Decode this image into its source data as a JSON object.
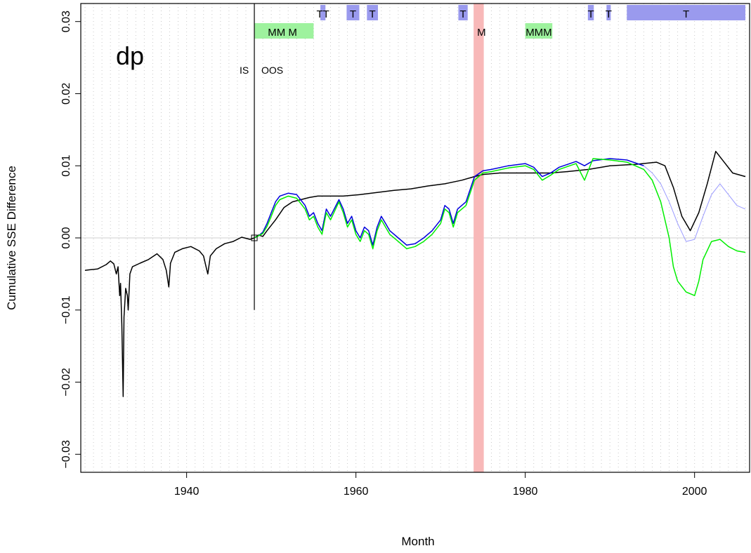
{
  "chart_data": {
    "type": "line",
    "title": "",
    "panel_label": "dp",
    "xlabel": "Month",
    "ylabel": "Cumulative SSE Difference",
    "xlim": [
      1927.5,
      2006.5
    ],
    "ylim": [
      -0.0325,
      0.0325
    ],
    "x_ticks": [
      1940,
      1960,
      1980,
      2000
    ],
    "x_tick_labels": [
      "1940",
      "1960",
      "1980",
      "2000"
    ],
    "y_ticks": [
      -0.03,
      -0.02,
      -0.01,
      0.0,
      0.01,
      0.02,
      0.03
    ],
    "y_tick_labels": [
      "−0.03",
      "−0.02",
      "−0.01",
      "0.00",
      "0.01",
      "0.02",
      "0.03"
    ],
    "zero_line": 0,
    "grid": "vertical dotted yearly lines",
    "oos_start": 1948,
    "is_label": "IS",
    "oos_label": "OOS",
    "oos_marker_ylim": [
      -0.01,
      0.0325
    ],
    "recession_band": {
      "x0": 1973.9,
      "x1": 1975.1,
      "color": "#f8b8b8",
      "label": "M"
    },
    "t_bands": [
      {
        "x0": 1955.8,
        "x1": 1956.4,
        "label": "TT"
      },
      {
        "x0": 1958.9,
        "x1": 1960.4,
        "label": "T"
      },
      {
        "x0": 1961.3,
        "x1": 1962.6,
        "label": "T"
      },
      {
        "x0": 1972.1,
        "x1": 1973.2,
        "label": "T"
      },
      {
        "x0": 1987.4,
        "x1": 1988.1,
        "label": "T"
      },
      {
        "x0": 1989.6,
        "x1": 1990.1,
        "label": "T"
      },
      {
        "x0": 1992.0,
        "x1": 2006.0,
        "label": "T"
      }
    ],
    "m_bands": [
      {
        "x0": 1948.0,
        "x1": 1955.0,
        "label": "MM   M"
      },
      {
        "x0": 1980.0,
        "x1": 1983.2,
        "label": "MMM"
      }
    ],
    "band_colors": {
      "t": "#9a9aee",
      "m": "#9ef29e"
    },
    "series": [
      {
        "color": "#000000",
        "points": [
          [
            1928.0,
            -0.0045
          ],
          [
            1929.5,
            -0.0043
          ],
          [
            1930.5,
            -0.0037
          ],
          [
            1931.0,
            -0.0032
          ],
          [
            1931.4,
            -0.0036
          ],
          [
            1931.7,
            -0.005
          ],
          [
            1931.9,
            -0.004
          ],
          [
            1932.1,
            -0.008
          ],
          [
            1932.2,
            -0.0063
          ],
          [
            1932.35,
            -0.012
          ],
          [
            1932.5,
            -0.022
          ],
          [
            1932.6,
            -0.011
          ],
          [
            1932.8,
            -0.007
          ],
          [
            1933.0,
            -0.008
          ],
          [
            1933.1,
            -0.01
          ],
          [
            1933.3,
            -0.005
          ],
          [
            1933.6,
            -0.004
          ],
          [
            1934.5,
            -0.0035
          ],
          [
            1935.5,
            -0.003
          ],
          [
            1936.5,
            -0.0022
          ],
          [
            1937.2,
            -0.003
          ],
          [
            1937.6,
            -0.0045
          ],
          [
            1937.9,
            -0.0068
          ],
          [
            1938.1,
            -0.0035
          ],
          [
            1938.6,
            -0.002
          ],
          [
            1939.5,
            -0.0015
          ],
          [
            1940.5,
            -0.0012
          ],
          [
            1941.5,
            -0.0018
          ],
          [
            1942.0,
            -0.0025
          ],
          [
            1942.3,
            -0.004
          ],
          [
            1942.5,
            -0.005
          ],
          [
            1942.8,
            -0.0025
          ],
          [
            1943.5,
            -0.0015
          ],
          [
            1944.5,
            -0.0008
          ],
          [
            1945.5,
            -0.0005
          ],
          [
            1946.5,
            0.0001
          ],
          [
            1947.5,
            -0.0002
          ],
          [
            1948.0,
            0.0
          ],
          [
            1948.5,
            0.0004
          ],
          [
            1949.0,
            0.0002
          ],
          [
            1949.5,
            0.001
          ],
          [
            1950.5,
            0.0025
          ],
          [
            1951.5,
            0.0042
          ],
          [
            1952.5,
            0.005
          ],
          [
            1953.5,
            0.0053
          ],
          [
            1954.5,
            0.0056
          ],
          [
            1955.5,
            0.0058
          ],
          [
            1956.5,
            0.0058
          ],
          [
            1958.5,
            0.0058
          ],
          [
            1960.5,
            0.006
          ],
          [
            1962.5,
            0.0063
          ],
          [
            1964.5,
            0.0066
          ],
          [
            1966.5,
            0.0068
          ],
          [
            1968.5,
            0.0072
          ],
          [
            1970.5,
            0.0075
          ],
          [
            1972.5,
            0.008
          ],
          [
            1974.0,
            0.0085
          ],
          [
            1975.0,
            0.0088
          ],
          [
            1977.0,
            0.009
          ],
          [
            1980.0,
            0.009
          ],
          [
            1983.0,
            0.009
          ],
          [
            1985.0,
            0.0092
          ],
          [
            1987.5,
            0.0095
          ],
          [
            1990.0,
            0.01
          ],
          [
            1993.0,
            0.0102
          ],
          [
            1995.5,
            0.0105
          ],
          [
            1996.5,
            0.01
          ],
          [
            1997.5,
            0.007
          ],
          [
            1998.5,
            0.003
          ],
          [
            1999.5,
            0.001
          ],
          [
            2000.5,
            0.0035
          ],
          [
            2001.5,
            0.0075
          ],
          [
            2002.5,
            0.012
          ],
          [
            2003.5,
            0.0105
          ],
          [
            2004.5,
            0.009
          ],
          [
            2006.0,
            0.0085
          ]
        ]
      },
      {
        "color": "#0000dd",
        "points": [
          [
            1948.0,
            0.0
          ],
          [
            1948.5,
            0.0003
          ],
          [
            1949.0,
            0.0008
          ],
          [
            1949.5,
            0.002
          ],
          [
            1950.0,
            0.0035
          ],
          [
            1950.5,
            0.005
          ],
          [
            1951.0,
            0.0058
          ],
          [
            1952.0,
            0.0062
          ],
          [
            1953.0,
            0.006
          ],
          [
            1954.0,
            0.0045
          ],
          [
            1954.5,
            0.003
          ],
          [
            1955.0,
            0.0035
          ],
          [
            1955.5,
            0.002
          ],
          [
            1956.0,
            0.001
          ],
          [
            1956.5,
            0.004
          ],
          [
            1957.0,
            0.003
          ],
          [
            1958.0,
            0.0053
          ],
          [
            1958.5,
            0.004
          ],
          [
            1959.0,
            0.002
          ],
          [
            1959.5,
            0.003
          ],
          [
            1960.0,
            0.001
          ],
          [
            1960.5,
            0.0
          ],
          [
            1961.0,
            0.0015
          ],
          [
            1961.5,
            0.001
          ],
          [
            1962.0,
            -0.001
          ],
          [
            1962.5,
            0.0015
          ],
          [
            1963.0,
            0.003
          ],
          [
            1963.5,
            0.002
          ],
          [
            1964.0,
            0.001
          ],
          [
            1965.0,
            0.0
          ],
          [
            1966.0,
            -0.001
          ],
          [
            1967.0,
            -0.0008
          ],
          [
            1968.0,
            0.0
          ],
          [
            1969.0,
            0.001
          ],
          [
            1970.0,
            0.0025
          ],
          [
            1970.5,
            0.0045
          ],
          [
            1971.0,
            0.004
          ],
          [
            1971.5,
            0.002
          ],
          [
            1972.0,
            0.004
          ],
          [
            1973.0,
            0.005
          ],
          [
            1974.0,
            0.0085
          ],
          [
            1975.0,
            0.0093
          ],
          [
            1976.0,
            0.0095
          ],
          [
            1978.0,
            0.01
          ],
          [
            1980.0,
            0.0103
          ],
          [
            1981.0,
            0.0098
          ],
          [
            1982.0,
            0.0085
          ],
          [
            1983.0,
            0.009
          ],
          [
            1984.0,
            0.0098
          ],
          [
            1986.0,
            0.0106
          ],
          [
            1987.0,
            0.01
          ],
          [
            1988.0,
            0.0107
          ],
          [
            1990.0,
            0.011
          ],
          [
            1992.0,
            0.0108
          ],
          [
            1994.0,
            0.01
          ]
        ]
      },
      {
        "color": "#9a9aff",
        "points": [
          [
            1994.0,
            0.01
          ],
          [
            1995.0,
            0.009
          ],
          [
            1996.0,
            0.0075
          ],
          [
            1997.0,
            0.005
          ],
          [
            1998.0,
            0.002
          ],
          [
            1999.0,
            -0.0005
          ],
          [
            2000.0,
            -0.0002
          ],
          [
            2001.0,
            0.003
          ],
          [
            2002.0,
            0.006
          ],
          [
            2003.0,
            0.0075
          ],
          [
            2004.0,
            0.006
          ],
          [
            2005.0,
            0.0045
          ],
          [
            2006.0,
            0.004
          ]
        ]
      },
      {
        "color": "#00ee00",
        "points": [
          [
            1948.0,
            0.0
          ],
          [
            1948.5,
            0.0003
          ],
          [
            1949.0,
            0.0006
          ],
          [
            1949.5,
            0.0016
          ],
          [
            1950.0,
            0.003
          ],
          [
            1950.5,
            0.0045
          ],
          [
            1951.0,
            0.0053
          ],
          [
            1952.0,
            0.0058
          ],
          [
            1953.0,
            0.0055
          ],
          [
            1954.0,
            0.004
          ],
          [
            1954.5,
            0.0025
          ],
          [
            1955.0,
            0.003
          ],
          [
            1955.5,
            0.0015
          ],
          [
            1956.0,
            0.0005
          ],
          [
            1956.5,
            0.0035
          ],
          [
            1957.0,
            0.0025
          ],
          [
            1958.0,
            0.005
          ],
          [
            1958.5,
            0.0035
          ],
          [
            1959.0,
            0.0015
          ],
          [
            1959.5,
            0.0025
          ],
          [
            1960.0,
            0.0005
          ],
          [
            1960.5,
            -0.0005
          ],
          [
            1961.0,
            0.001
          ],
          [
            1961.5,
            0.0005
          ],
          [
            1962.0,
            -0.0015
          ],
          [
            1962.5,
            0.001
          ],
          [
            1963.0,
            0.0025
          ],
          [
            1963.5,
            0.0015
          ],
          [
            1964.0,
            0.0005
          ],
          [
            1965.0,
            -0.0005
          ],
          [
            1966.0,
            -0.0015
          ],
          [
            1967.0,
            -0.0012
          ],
          [
            1968.0,
            -0.0005
          ],
          [
            1969.0,
            0.0005
          ],
          [
            1970.0,
            0.002
          ],
          [
            1970.5,
            0.004
          ],
          [
            1971.0,
            0.0035
          ],
          [
            1971.5,
            0.0015
          ],
          [
            1972.0,
            0.0035
          ],
          [
            1973.0,
            0.0045
          ],
          [
            1974.0,
            0.008
          ],
          [
            1975.0,
            0.009
          ],
          [
            1976.0,
            0.0092
          ],
          [
            1978.0,
            0.0097
          ],
          [
            1980.0,
            0.01
          ],
          [
            1981.0,
            0.0095
          ],
          [
            1982.0,
            0.008
          ],
          [
            1983.0,
            0.0087
          ],
          [
            1984.0,
            0.0095
          ],
          [
            1986.0,
            0.0103
          ],
          [
            1987.0,
            0.008
          ],
          [
            1988.0,
            0.011
          ],
          [
            1990.0,
            0.0108
          ],
          [
            1992.0,
            0.0105
          ],
          [
            1994.0,
            0.0095
          ],
          [
            1995.0,
            0.008
          ],
          [
            1996.0,
            0.005
          ],
          [
            1997.0,
            0.0
          ],
          [
            1997.5,
            -0.004
          ],
          [
            1998.0,
            -0.006
          ],
          [
            1999.0,
            -0.0075
          ],
          [
            2000.0,
            -0.008
          ],
          [
            2000.5,
            -0.006
          ],
          [
            2001.0,
            -0.003
          ],
          [
            2002.0,
            -0.0005
          ],
          [
            2003.0,
            -0.0002
          ],
          [
            2004.0,
            -0.0012
          ],
          [
            2005.0,
            -0.0018
          ],
          [
            2006.0,
            -0.002
          ]
        ]
      }
    ]
  }
}
